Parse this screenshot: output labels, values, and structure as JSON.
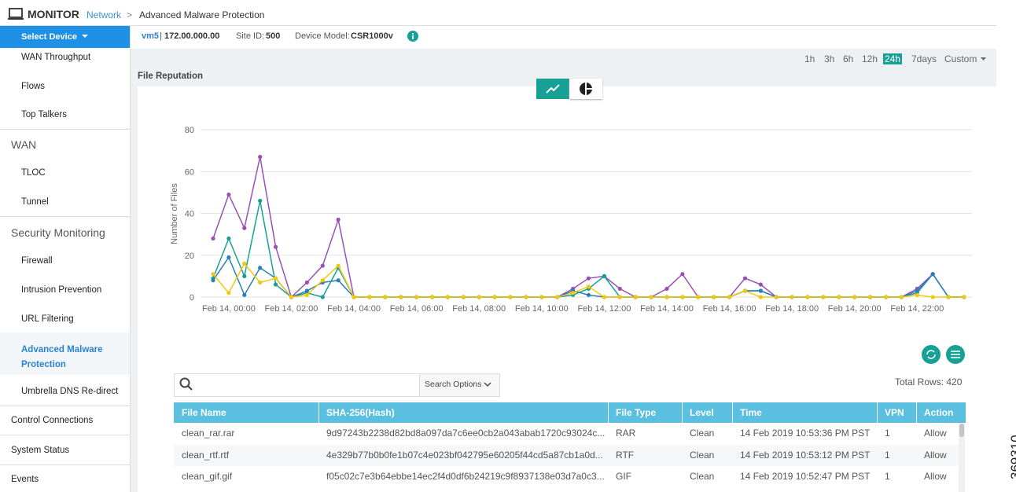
{
  "header": {
    "title": "MONITOR",
    "breadcrumb": "Network",
    "separator": ">",
    "page": "Advanced Malware Protection"
  },
  "sidebar": {
    "select": "Select Device",
    "items": [
      "WAN Throughput",
      "Flows",
      "Top Talkers",
      "WAN",
      "TLOC",
      "Tunnel",
      "Security Monitoring",
      "Firewall",
      "Intrusion Prevention",
      "URL Filtering",
      "Advanced Malware Protection",
      "Umbrella DNS Re-direct",
      "Control Connections",
      "System Status",
      "Events"
    ]
  },
  "device": {
    "name": "vm5",
    "separator": "|",
    "ip": "172.00.000.00",
    "site_label": "Site ID:",
    "site": "500",
    "model_label": "Device Model:",
    "model": "CSR1000v"
  },
  "time_ranges": {
    "options": [
      "1h",
      "3h",
      "6h",
      "12h",
      "24h",
      "7days",
      "Custom"
    ],
    "selected": 4
  },
  "panel": {
    "title": "File Reputation"
  },
  "chart_data": {
    "type": "line",
    "y_label": "Number of Files",
    "categories": [
      null,
      "Feb 14, 00:00",
      null,
      null,
      null,
      "Feb 14, 02:00",
      null,
      null,
      null,
      "Feb 14, 04:00",
      null,
      null,
      null,
      "Feb 14, 06:00",
      null,
      null,
      null,
      "Feb 14, 08:00",
      null,
      null,
      null,
      "Feb 14, 10:00",
      null,
      null,
      null,
      "Feb 14, 12:00",
      null,
      null,
      null,
      "Feb 14, 14:00",
      null,
      null,
      null,
      "Feb 14, 16:00",
      null,
      null,
      null,
      "Feb 14, 18:00",
      null,
      null,
      null,
      "Feb 14, 20:00",
      null,
      null,
      null,
      "Feb 14, 22:00",
      null,
      null,
      null
    ],
    "ylim": [
      0,
      80
    ],
    "yticks": [
      0,
      20,
      40,
      60,
      80
    ],
    "grid": true,
    "series": [
      {
        "color": "#9b4fb5",
        "values": [
          28,
          49,
          33,
          67,
          24,
          0,
          7,
          15,
          37,
          0,
          0,
          0,
          0,
          0,
          0,
          0,
          0,
          0,
          0,
          0,
          0,
          0,
          0,
          4,
          9,
          10,
          4,
          0,
          0,
          4,
          11,
          0,
          0,
          0,
          9,
          6,
          0,
          0,
          0,
          0,
          0,
          0,
          0,
          0,
          0,
          4,
          11,
          0,
          0
        ]
      },
      {
        "color": "#17a096",
        "values": [
          9,
          28,
          10,
          46,
          6,
          0,
          2,
          0,
          14,
          0,
          0,
          0,
          0,
          0,
          0,
          0,
          0,
          0,
          0,
          0,
          0,
          0,
          0,
          1,
          4,
          10,
          0,
          0,
          0,
          0,
          0,
          0,
          0,
          0,
          3,
          3,
          0,
          0,
          0,
          0,
          0,
          0,
          0,
          0,
          0,
          2,
          11,
          0,
          0
        ]
      },
      {
        "color": "#2d7fb8",
        "values": [
          8,
          19,
          1,
          14,
          9,
          0,
          3,
          7,
          8,
          0,
          0,
          0,
          0,
          0,
          0,
          0,
          0,
          0,
          0,
          0,
          0,
          0,
          0,
          3,
          1,
          0,
          0,
          0,
          0,
          0,
          0,
          0,
          0,
          0,
          3,
          3,
          0,
          0,
          0,
          0,
          0,
          0,
          0,
          0,
          0,
          3,
          11,
          0,
          0
        ]
      },
      {
        "color": "#f2c80f",
        "values": [
          11,
          2,
          16,
          7,
          9,
          0,
          1,
          8,
          15,
          0,
          0,
          0,
          0,
          0,
          0,
          0,
          0,
          0,
          0,
          0,
          0,
          0,
          0,
          2,
          5,
          0,
          0,
          0,
          0,
          0,
          0,
          0,
          0,
          0,
          3,
          0,
          0,
          0,
          0,
          0,
          0,
          0,
          0,
          0,
          0,
          1,
          0,
          0,
          0
        ]
      }
    ]
  },
  "search": {
    "options": "Search Options"
  },
  "table": {
    "total": "Total Rows: 420",
    "columns": [
      "File Name",
      "SHA-256(Hash)",
      "File Type",
      "Level",
      "Time",
      "VPN",
      "Action"
    ],
    "rows": [
      [
        "clean_rar.rar",
        "9d97243b2238d82bd8a097da7c6ee0cb2a043abab1720c93024c...",
        "RAR",
        "Clean",
        "14 Feb 2019 10:53:36 PM PST",
        "1",
        "Allow"
      ],
      [
        "clean_rtf.rtf",
        "4e329b77b0b0fe1b07c4e023bf042795e60205f44cd5a87cb1a0d...",
        "RTF",
        "Clean",
        "14 Feb 2019 10:53:12 PM PST",
        "1",
        "Allow"
      ],
      [
        "clean_gif.gif",
        "f05c02c7e3b64ebbe14ec2f4d0df6b24219c9f8937138e03d7a0c3...",
        "GIF",
        "Clean",
        "14 Feb 2019 10:52:47 PM PST",
        "1",
        "Allow"
      ]
    ]
  },
  "watermark": "369310"
}
